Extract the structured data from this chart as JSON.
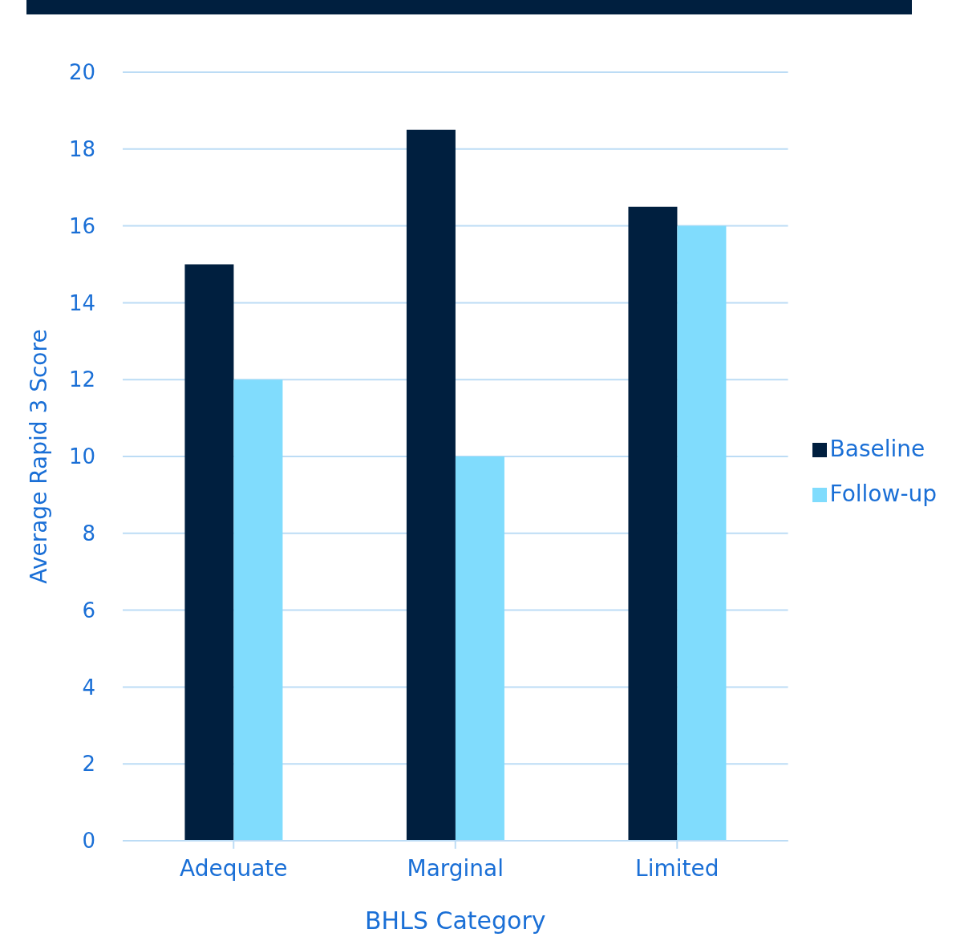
{
  "chart_data": {
    "type": "bar",
    "xlabel": "BHLS Category",
    "ylabel": "Average Rapid 3 Score",
    "categories": [
      "Adequate",
      "Marginal",
      "Limited"
    ],
    "series": [
      {
        "name": "Baseline",
        "color": "#001f3f",
        "values": [
          15,
          18.5,
          16.5
        ]
      },
      {
        "name": "Follow-up",
        "color": "#80dcfd",
        "values": [
          12,
          10,
          16
        ]
      }
    ],
    "ylim": [
      0,
      20
    ],
    "yticks": [
      0,
      2,
      4,
      6,
      8,
      10,
      12,
      14,
      16,
      18,
      20
    ],
    "grid": "y",
    "legend": "right"
  }
}
